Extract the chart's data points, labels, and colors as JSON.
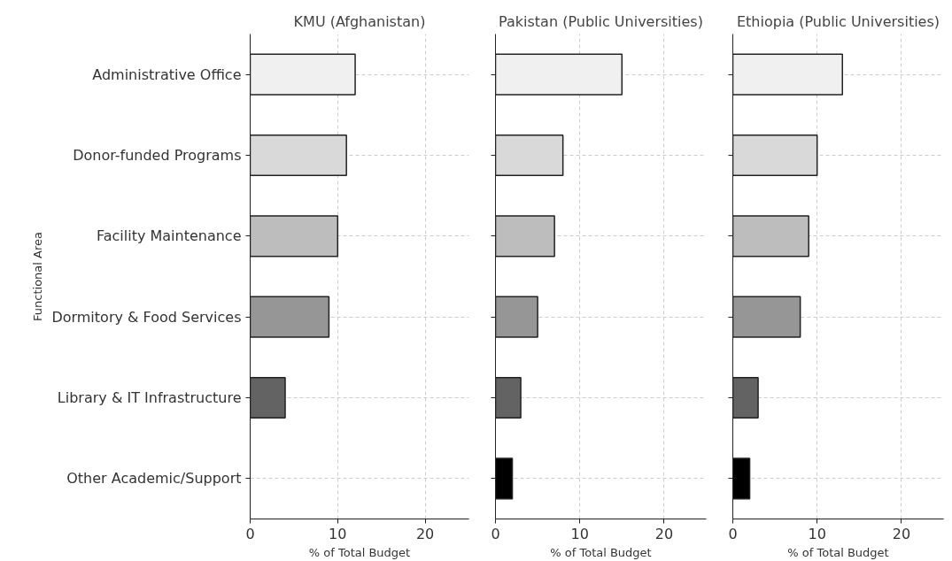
{
  "chart_data": [
    {
      "type": "bar",
      "orientation": "horizontal",
      "title": "KMU (Afghanistan)",
      "xlabel": "% of Total Budget",
      "ylabel": "Functional Area",
      "categories": [
        "Administrative Office",
        "Donor-funded Programs",
        "Facility Maintenance",
        "Dormitory & Food Services",
        "Library & IT Infrastructure",
        "Other Academic/Support"
      ],
      "values": [
        12,
        11,
        10,
        9,
        4,
        null
      ],
      "colors": [
        "#f0f0f0",
        "#d9d9d9",
        "#bdbdbd",
        "#969696",
        "#636363",
        "#000000"
      ],
      "xlim": [
        0,
        25
      ],
      "xticks": [
        0,
        10,
        20
      ],
      "grid": true
    },
    {
      "type": "bar",
      "orientation": "horizontal",
      "title": "Pakistan (Public Universities)",
      "xlabel": "% of Total Budget",
      "categories": [
        null,
        null,
        null,
        null,
        null,
        null
      ],
      "values": [
        15,
        8,
        7,
        5,
        3,
        2
      ],
      "colors": [
        "#f0f0f0",
        "#d9d9d9",
        "#bdbdbd",
        "#969696",
        "#636363",
        "#000000"
      ],
      "xlim": [
        0,
        25
      ],
      "xticks": [
        0,
        10,
        20
      ],
      "grid": true,
      "tick_labels": "x"
    },
    {
      "type": "bar",
      "orientation": "horizontal",
      "title": "Ethiopia (Public Universities)",
      "xlabel": "% of Total Budget",
      "categories": [
        null,
        null,
        null,
        null,
        null,
        null
      ],
      "values": [
        13,
        10,
        9,
        8,
        3,
        2
      ],
      "colors": [
        "#f0f0f0",
        "#d9d9d9",
        "#bdbdbd",
        "#969696",
        "#636363",
        "#000000"
      ],
      "xlim": [
        0,
        25
      ],
      "xticks": [
        0,
        10,
        20
      ],
      "grid": true,
      "tick_labels": "x"
    }
  ]
}
